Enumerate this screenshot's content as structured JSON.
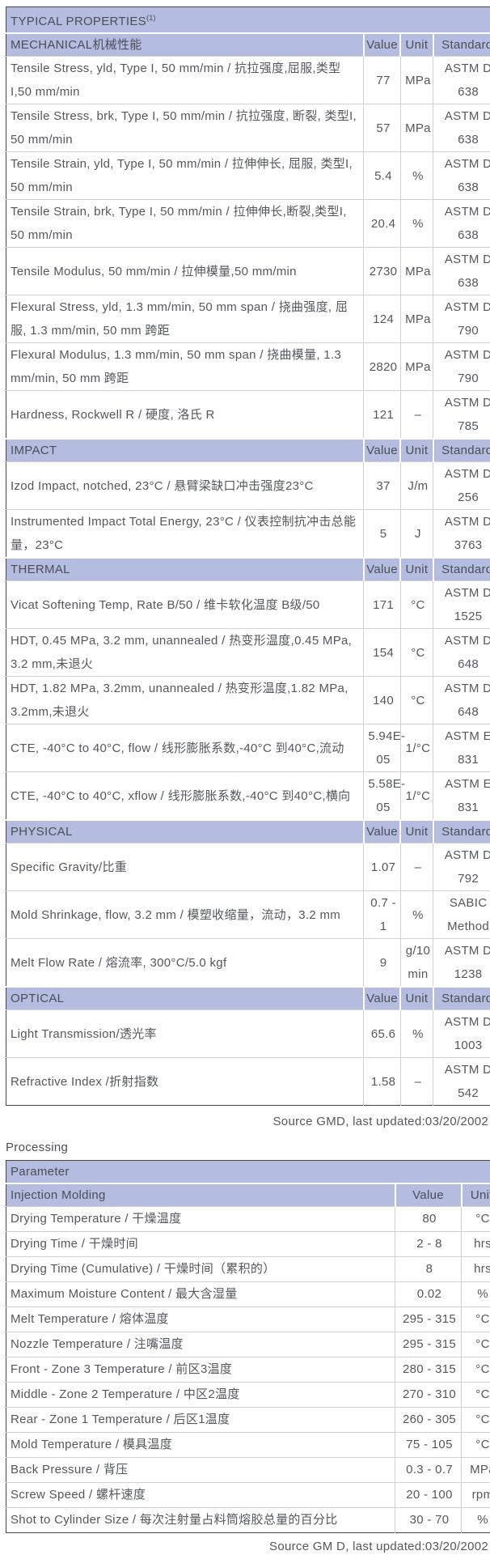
{
  "colors": {
    "header_bg": "#b4bce0",
    "body_text": "#55575f",
    "header_text": "#4c4e57",
    "grid_line": "#d0d2d7",
    "outer_border": "#43464b"
  },
  "table1": {
    "title": "TYPICAL PROPERTIES",
    "title_superscript": "(1)",
    "columns": [
      "Value",
      "Unit",
      "Standard"
    ],
    "sections": [
      {
        "name": "MECHANICAL机械性能",
        "rows": [
          {
            "property": "Tensile Stress, yld, Type I, 50 mm/min / 抗拉强度,屈服,类型I,50 mm/min",
            "value": "77",
            "unit": "MPa",
            "standard": "ASTM D 638"
          },
          {
            "property": "Tensile Stress, brk, Type I, 50 mm/min / 抗拉强度, 断裂, 类型I, 50 mm/min",
            "value": "57",
            "unit": "MPa",
            "standard": "ASTM D 638"
          },
          {
            "property": "Tensile Strain, yld, Type I, 50 mm/min / 拉伸伸长, 屈服, 类型I, 50 mm/min",
            "value": "5.4",
            "unit": "%",
            "standard": "ASTM D 638"
          },
          {
            "property": "Tensile Strain, brk, Type I, 50 mm/min / 拉伸伸长,断裂,类型I, 50 mm/min",
            "value": "20.4",
            "unit": "%",
            "standard": "ASTM D 638"
          },
          {
            "property": "Tensile Modulus, 50 mm/min / 拉伸模量,50 mm/min",
            "value": "2730",
            "unit": "MPa",
            "standard": "ASTM D 638"
          },
          {
            "property": "Flexural Stress, yld, 1.3 mm/min, 50 mm span / 挠曲强度, 屈服, 1.3 mm/min, 50 mm 跨距",
            "value": "124",
            "unit": "MPa",
            "standard": "ASTM D 790"
          },
          {
            "property": "Flexural Modulus, 1.3 mm/min, 50 mm span / 挠曲模量, 1.3 mm/min, 50 mm 跨距",
            "value": "2820",
            "unit": "MPa",
            "standard": "ASTM D 790"
          },
          {
            "property": "Hardness, Rockwell R / 硬度, 洛氏 R",
            "value": "121",
            "unit": "–",
            "standard": "ASTM D 785"
          }
        ]
      },
      {
        "name": "IMPACT",
        "rows": [
          {
            "property": "Izod Impact, notched, 23°C / 悬臂梁缺口冲击强度23°C",
            "value": "37",
            "unit": "J/m",
            "standard": "ASTM D 256"
          },
          {
            "property": "Instrumented Impact Total Energy, 23°C / 仪表控制抗冲击总能量，23°C",
            "value": "5",
            "unit": "J",
            "standard": "ASTM D 3763"
          }
        ]
      },
      {
        "name": "THERMAL",
        "rows": [
          {
            "property": "Vicat Softening Temp, Rate B/50 / 维卡软化温度 B级/50",
            "value": "171",
            "unit": "°C",
            "standard": "ASTM D 1525"
          },
          {
            "property": "HDT, 0.45 MPa, 3.2 mm, unannealed / 热变形温度,0.45 MPa, 3.2 mm,未退火",
            "value": "154",
            "unit": "°C",
            "standard": "ASTM D 648"
          },
          {
            "property": "HDT, 1.82 MPa, 3.2mm, unannealed / 热变形温度,1.82 MPa, 3.2mm,未退火",
            "value": "140",
            "unit": "°C",
            "standard": "ASTM D 648"
          },
          {
            "property": "CTE, -40°C to 40°C, flow / 线形膨胀系数,-40°C 到40°C,流动",
            "value": "5.94E-05",
            "unit": "1/°C",
            "standard": "ASTM E 831"
          },
          {
            "property": "CTE, -40°C to 40°C, xflow / 线形膨胀系数,-40°C 到40°C,横向",
            "value": "5.58E-05",
            "unit": "1/°C",
            "standard": "ASTM E 831"
          }
        ]
      },
      {
        "name": "PHYSICAL",
        "rows": [
          {
            "property": "Specific Gravity/比重",
            "value": "1.07",
            "unit": "–",
            "standard": "ASTM D 792"
          },
          {
            "property": "Mold Shrinkage, flow, 3.2 mm / 模塑收缩量，流动，3.2 mm",
            "value": "0.7 - 1",
            "unit": "%",
            "standard": "SABIC Method"
          },
          {
            "property": "Melt Flow Rate / 熔流率, 300°C/5.0 kgf",
            "value": "9",
            "unit": "g/10 min",
            "standard": "ASTM D 1238"
          }
        ]
      },
      {
        "name": "OPTICAL",
        "rows": [
          {
            "property": "Light Transmission/透光率",
            "value": "65.6",
            "unit": "%",
            "standard": "ASTM D 1003"
          },
          {
            "property": "Refractive Index /折射指数",
            "value": "1.58",
            "unit": "–",
            "standard": "ASTM D 542"
          }
        ]
      }
    ],
    "source_note": "Source GMD, last updated:03/20/2002"
  },
  "processing": {
    "heading": "Processing",
    "table": {
      "header": "Parameter",
      "subheader": "Injection Molding",
      "columns": [
        "Value",
        "Unit"
      ],
      "rows": [
        {
          "parameter": "Drying Temperature / 干燥温度",
          "value": "80",
          "unit": "°C"
        },
        {
          "parameter": "Drying Time / 干燥时间",
          "value": "2 - 8",
          "unit": "hrs"
        },
        {
          "parameter": "Drying Time (Cumulative) / 干燥时间（累积的）",
          "value": "8",
          "unit": "hrs"
        },
        {
          "parameter": "Maximum Moisture Content / 最大含湿量",
          "value": "0.02",
          "unit": "%"
        },
        {
          "parameter": "Melt Temperature / 熔体温度",
          "value": "295 - 315",
          "unit": "°C"
        },
        {
          "parameter": "Nozzle Temperature / 注嘴温度",
          "value": "295 - 315",
          "unit": "°C"
        },
        {
          "parameter": "Front - Zone 3 Temperature / 前区3温度",
          "value": "280 - 315",
          "unit": "°C"
        },
        {
          "parameter": "Middle - Zone 2 Temperature / 中区2温度",
          "value": "270 - 310",
          "unit": "°C"
        },
        {
          "parameter": "Rear - Zone 1 Temperature / 后区1温度",
          "value": "260 - 305",
          "unit": "°C"
        },
        {
          "parameter": "Mold Temperature / 模具温度",
          "value": "75 - 105",
          "unit": "°C"
        },
        {
          "parameter": "Back Pressure / 背压",
          "value": "0.3 - 0.7",
          "unit": "MPa"
        },
        {
          "parameter": "Screw Speed / 螺杆速度",
          "value": "20 - 100",
          "unit": "rpm"
        },
        {
          "parameter": "Shot to Cylinder Size / 每次注射量占料筒熔胶总量的百分比",
          "value": "30 - 70",
          "unit": "%"
        }
      ]
    },
    "source_note": "Source GM D, last updated:03/20/2002"
  }
}
